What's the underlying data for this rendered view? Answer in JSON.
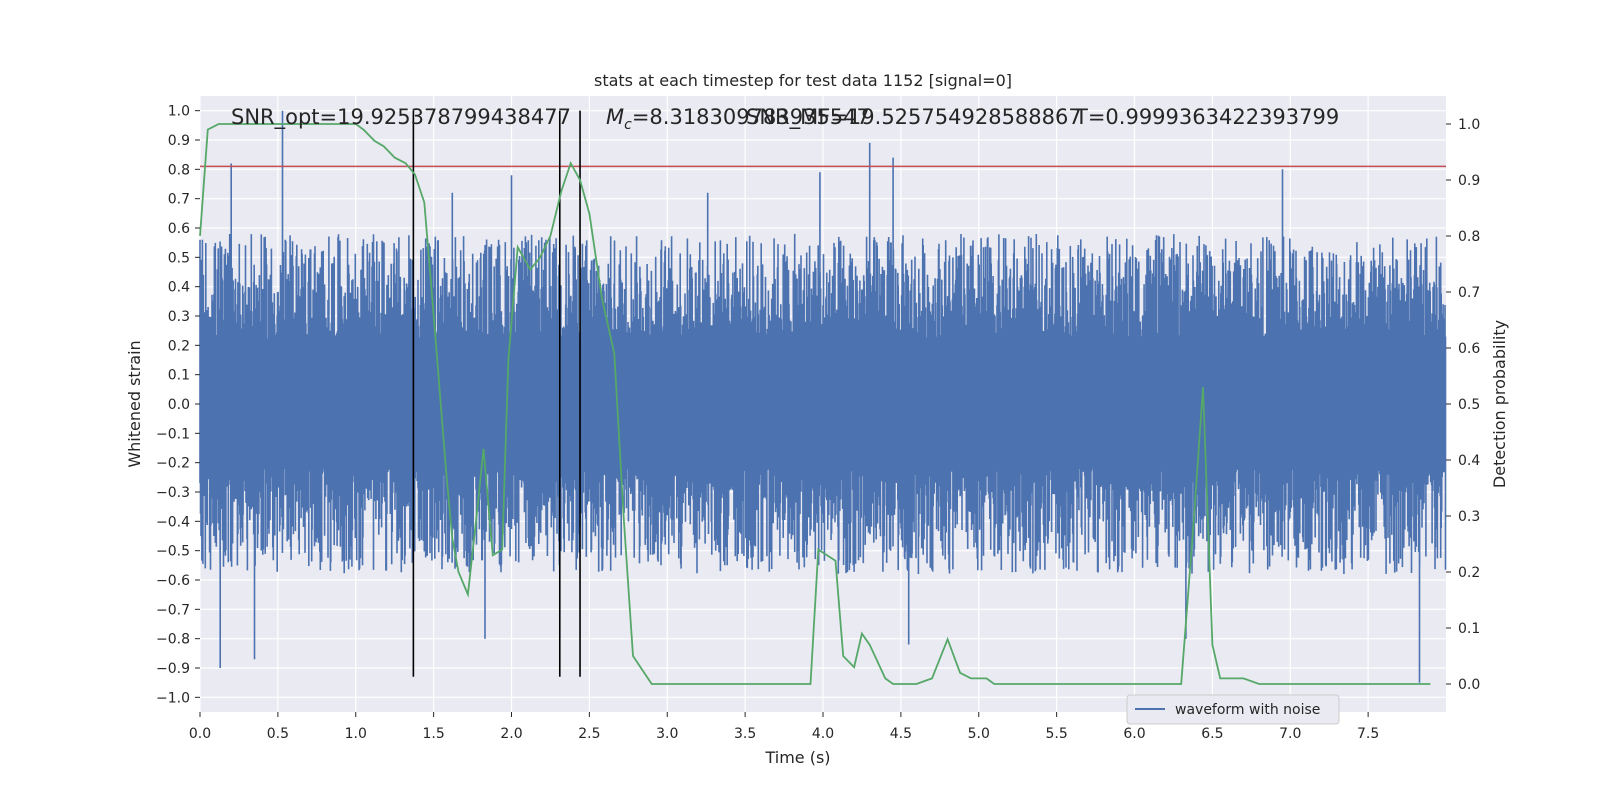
{
  "chart_data": {
    "type": "line",
    "title": "stats at each timestep for test data 1152 [signal=0]",
    "xlabel": "Time (s)",
    "ylabel": "Whitened strain",
    "ylabel_right": "Detection probability",
    "xlim": [
      0,
      8.0
    ],
    "ylim_left": [
      -1.05,
      1.05
    ],
    "ylim_right": [
      -0.05,
      1.05
    ],
    "xticks": [
      "0.0",
      "0.5",
      "1.0",
      "1.5",
      "2.0",
      "2.5",
      "3.0",
      "3.5",
      "4.0",
      "4.5",
      "5.0",
      "5.5",
      "6.0",
      "6.5",
      "7.0",
      "7.5"
    ],
    "yticks_left": [
      "1.0",
      "0.9",
      "0.8",
      "0.7",
      "0.6",
      "0.5",
      "0.4",
      "0.3",
      "0.2",
      "0.1",
      "0.0",
      "−0.1",
      "−0.2",
      "−0.3",
      "−0.4",
      "−0.5",
      "−0.6",
      "−0.7",
      "−0.8",
      "−0.9",
      "−1.0"
    ],
    "yticks_right": [
      "1.0",
      "0.9",
      "0.8",
      "0.7",
      "0.6",
      "0.5",
      "0.4",
      "0.3",
      "0.2",
      "0.1",
      "0.0"
    ],
    "grid": true,
    "legend_placement": "lower-right",
    "annotations": {
      "snr_opt": "SNR_opt=19.925378799438477",
      "mc_prefix": "M",
      "mc_sub": "c",
      "mc_value": "=8.318309783935547",
      "snr_mf": "SNR_MF=19.525754928588867",
      "t_value": "T=0.9999363422393799"
    },
    "colors": {
      "waveform": "#4c72b0",
      "probability": "#55a868",
      "threshold": "#c44e52",
      "markers": "#000000",
      "background": "#eaeaf2"
    },
    "series": [
      {
        "name": "waveform with noise",
        "style": "dense-noise",
        "envelope": {
          "typical_upper": 0.4,
          "typical_lower": -0.4,
          "peaks": [
            {
              "x": 0.2,
              "y": 0.82
            },
            {
              "x": 0.53,
              "y": 1.0
            },
            {
              "x": 0.13,
              "y": -0.9
            },
            {
              "x": 0.35,
              "y": -0.87
            },
            {
              "x": 1.62,
              "y": 0.72
            },
            {
              "x": 1.83,
              "y": -0.8
            },
            {
              "x": 2.0,
              "y": 0.78
            },
            {
              "x": 3.26,
              "y": 0.72
            },
            {
              "x": 3.98,
              "y": 0.79
            },
            {
              "x": 4.3,
              "y": 0.89
            },
            {
              "x": 4.45,
              "y": 0.84
            },
            {
              "x": 4.55,
              "y": -0.82
            },
            {
              "x": 6.33,
              "y": -0.8
            },
            {
              "x": 6.95,
              "y": 0.8
            },
            {
              "x": 7.83,
              "y": -0.95
            }
          ]
        }
      },
      {
        "name": "",
        "axis": "right",
        "x": [
          0.0,
          0.05,
          0.12,
          0.3,
          0.5,
          0.7,
          0.9,
          1.0,
          1.05,
          1.12,
          1.18,
          1.25,
          1.32,
          1.38,
          1.44,
          1.5,
          1.58,
          1.62,
          1.66,
          1.72,
          1.78,
          1.82,
          1.88,
          1.94,
          1.98,
          2.04,
          2.12,
          2.18,
          2.25,
          2.32,
          2.38,
          2.44,
          2.5,
          2.58,
          2.66,
          2.72,
          2.78,
          2.9,
          3.2,
          3.5,
          3.6,
          3.8,
          3.92,
          3.97,
          4.08,
          4.13,
          4.2,
          4.25,
          4.3,
          4.4,
          4.45,
          4.6,
          4.7,
          4.8,
          4.88,
          4.95,
          5.05,
          5.1,
          5.2,
          5.4,
          5.6,
          6.0,
          6.2,
          6.3,
          6.38,
          6.44,
          6.5,
          6.55,
          6.7,
          6.8,
          7.2,
          7.5,
          7.9
        ],
        "values": [
          0.8,
          0.99,
          1.0,
          1.0,
          1.0,
          1.0,
          1.0,
          1.0,
          0.99,
          0.97,
          0.96,
          0.94,
          0.93,
          0.91,
          0.86,
          0.66,
          0.38,
          0.26,
          0.2,
          0.16,
          0.31,
          0.42,
          0.23,
          0.24,
          0.58,
          0.78,
          0.74,
          0.76,
          0.8,
          0.88,
          0.93,
          0.9,
          0.84,
          0.69,
          0.59,
          0.3,
          0.05,
          0.0,
          0.0,
          0.0,
          0.0,
          0.0,
          0.0,
          0.24,
          0.22,
          0.05,
          0.03,
          0.09,
          0.07,
          0.01,
          0.0,
          0.0,
          0.01,
          0.08,
          0.02,
          0.01,
          0.01,
          0.0,
          0.0,
          0.0,
          0.0,
          0.0,
          0.0,
          0.0,
          0.29,
          0.53,
          0.07,
          0.01,
          0.01,
          0.0,
          0.0,
          0.0,
          0.0
        ]
      }
    ],
    "reference_lines": {
      "threshold_y_left": 0.81,
      "vertical_markers_x": [
        1.37,
        2.31,
        2.44
      ]
    },
    "legend": [
      "waveform with noise"
    ]
  }
}
